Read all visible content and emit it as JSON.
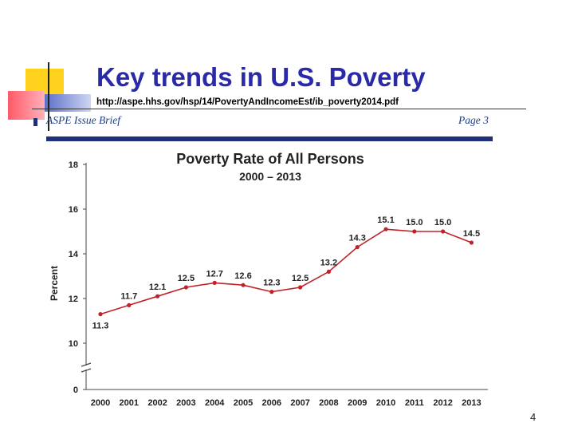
{
  "slide": {
    "title": "Key trends in U.S. Poverty",
    "url": "http://aspe.hhs.gov/hsp/14/PovertyAndIncomeEst/ib_poverty2014.pdf",
    "slide_number": "4"
  },
  "document": {
    "header_left": "ASPE Issue Brief",
    "header_right": "Page 3"
  },
  "colors": {
    "title": "#2a2aa8",
    "rule": "#1f2f7a",
    "line": "#c0222a",
    "deco_yellow": "#ffd21e",
    "deco_pink": "#ff6b78"
  },
  "chart_data": {
    "type": "line",
    "title": "Poverty Rate of All Persons",
    "subtitle": "2000 – 2013",
    "ylabel": "Percent",
    "xlabel": "",
    "ylim": [
      0,
      18
    ],
    "y_axis_break": [
      0,
      10
    ],
    "yticks": [
      0,
      10,
      12,
      14,
      16,
      18
    ],
    "grid": false,
    "categories": [
      "2000",
      "2001",
      "2002",
      "2003",
      "2004",
      "2005",
      "2006",
      "2007",
      "2008",
      "2009",
      "2010",
      "2011",
      "2012",
      "2013"
    ],
    "values": [
      11.3,
      11.7,
      12.1,
      12.5,
      12.7,
      12.6,
      12.3,
      12.5,
      13.2,
      14.3,
      15.1,
      15.0,
      15.0,
      14.5
    ],
    "data_labels": [
      "11.3",
      "11.7",
      "12.1",
      "12.5",
      "12.7",
      "12.6",
      "12.3",
      "12.5",
      "13.2",
      "14.3",
      "15.1",
      "15.0",
      "15.0",
      "14.5"
    ]
  }
}
